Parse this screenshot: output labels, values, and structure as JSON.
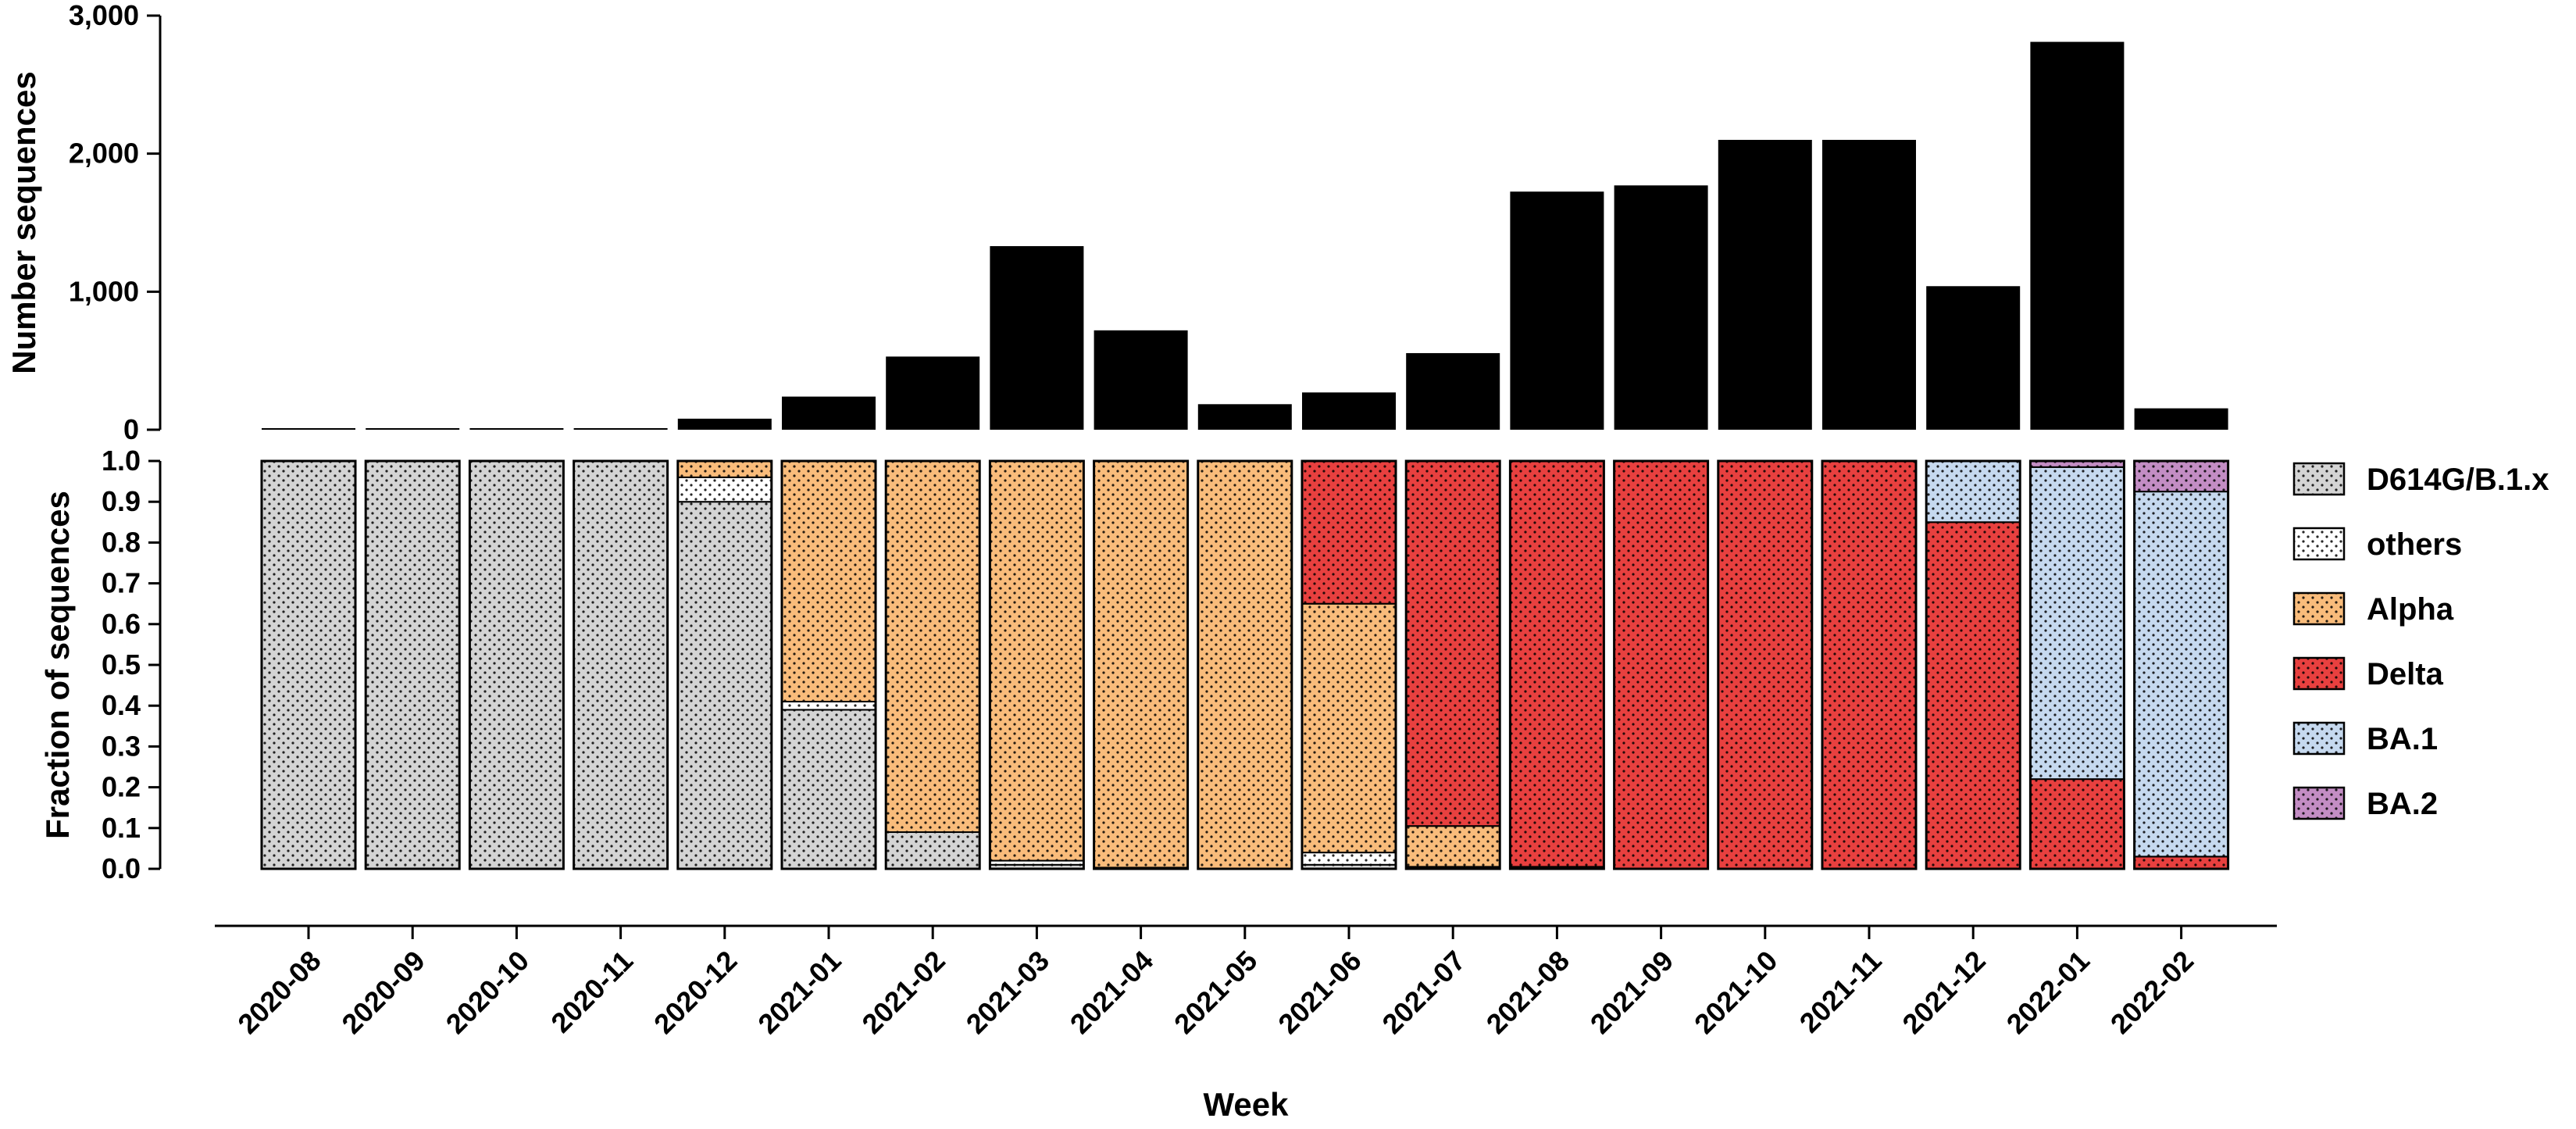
{
  "chart_data": [
    {
      "type": "bar",
      "ylabel": "Number sequences",
      "yticks": [
        "0",
        "1,000",
        "2,000",
        "3,000"
      ],
      "ylim": [
        0,
        3000
      ],
      "categories": [
        "2020-08",
        "2020-09",
        "2020-10",
        "2020-11",
        "2020-12",
        "2021-01",
        "2021-02",
        "2021-03",
        "2021-04",
        "2021-05",
        "2021-06",
        "2021-07",
        "2021-08",
        "2021-09",
        "2021-10",
        "2021-11",
        "2021-12",
        "2022-01",
        "2022-02"
      ],
      "values": [
        5,
        5,
        5,
        5,
        80,
        240,
        530,
        1330,
        720,
        185,
        270,
        555,
        1725,
        1770,
        2100,
        2100,
        1040,
        2810,
        155
      ],
      "color": "#000000"
    },
    {
      "type": "bar",
      "stacked": true,
      "ylabel": "Fraction of sequences",
      "xlabel": "Week",
      "yticks": [
        "0.0",
        "0.1",
        "0.2",
        "0.3",
        "0.4",
        "0.5",
        "0.6",
        "0.7",
        "0.8",
        "0.9",
        "1.0"
      ],
      "ylim": [
        0,
        1
      ],
      "legend_position": "right",
      "categories": [
        "2020-08",
        "2020-09",
        "2020-10",
        "2020-11",
        "2020-12",
        "2021-01",
        "2021-02",
        "2021-03",
        "2021-04",
        "2021-05",
        "2021-06",
        "2021-07",
        "2021-08",
        "2021-09",
        "2021-10",
        "2021-11",
        "2021-12",
        "2022-01",
        "2022-02"
      ],
      "series": [
        {
          "name": "D614G/B.1.x",
          "color": "#d4d4d4",
          "values": [
            1.0,
            1.0,
            1.0,
            1.0,
            0.9,
            0.39,
            0.09,
            0.01,
            0,
            0,
            0.01,
            0,
            0,
            0,
            0,
            0,
            0,
            0,
            0
          ]
        },
        {
          "name": "others",
          "color": "#ffffff",
          "values": [
            0,
            0,
            0,
            0,
            0.06,
            0.02,
            0,
            0.01,
            0.003,
            0,
            0.03,
            0.005,
            0.005,
            0,
            0,
            0,
            0,
            0,
            0
          ]
        },
        {
          "name": "Alpha",
          "color": "#f9bc7b",
          "values": [
            0,
            0,
            0,
            0,
            0.04,
            0.59,
            0.91,
            0.98,
            0.997,
            1.0,
            0.61,
            0.1,
            0,
            0,
            0,
            0,
            0,
            0,
            0
          ]
        },
        {
          "name": "Delta",
          "color": "#e8403f",
          "values": [
            0,
            0,
            0,
            0,
            0,
            0,
            0,
            0,
            0,
            0,
            0.35,
            0.895,
            0.995,
            1.0,
            1.0,
            1.0,
            0.85,
            0.22,
            0.03
          ]
        },
        {
          "name": "BA.1",
          "color": "#c6d9ef",
          "values": [
            0,
            0,
            0,
            0,
            0,
            0,
            0,
            0,
            0,
            0,
            0,
            0,
            0,
            0,
            0,
            0,
            0.15,
            0.765,
            0.895
          ]
        },
        {
          "name": "BA.2",
          "color": "#c38dc4",
          "values": [
            0,
            0,
            0,
            0,
            0,
            0,
            0,
            0,
            0,
            0,
            0,
            0,
            0,
            0,
            0,
            0,
            0,
            0.015,
            0.075
          ]
        }
      ]
    }
  ]
}
